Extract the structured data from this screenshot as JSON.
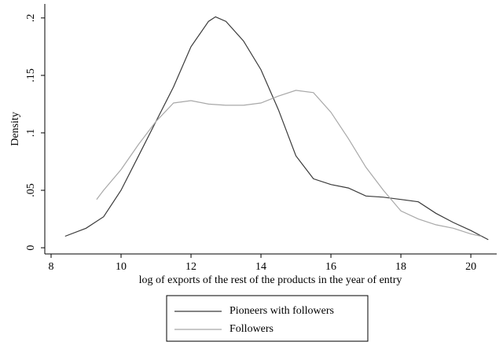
{
  "chart_data": {
    "type": "line",
    "xlabel": "log of exports of the rest of the products in the year of entry",
    "ylabel": "Density",
    "xlim": [
      7.82,
      20.74
    ],
    "ylim": [
      -0.0054,
      0.2122
    ],
    "xticks": [
      8,
      10,
      12,
      14,
      16,
      18,
      20
    ],
    "yticks": [
      0,
      {
        "value": 0.05,
        "label": ".05"
      },
      {
        "value": 0.1,
        "label": ".1"
      },
      {
        "value": 0.15,
        "label": ".15"
      },
      {
        "value": 0.2,
        "label": ".2"
      }
    ],
    "series": [
      {
        "name": "Pioneers with followers",
        "color": "#3a3a3a",
        "x": [
          8.4,
          9,
          9.5,
          10,
          10.5,
          11,
          11.5,
          12,
          12.5,
          12.7,
          13,
          13.5,
          14,
          14.5,
          15,
          15.5,
          16,
          16.5,
          17,
          17.5,
          18,
          18.5,
          19,
          19.5,
          20,
          20.5
        ],
        "values": [
          0.01,
          0.017,
          0.027,
          0.05,
          0.08,
          0.11,
          0.14,
          0.175,
          0.197,
          0.201,
          0.197,
          0.18,
          0.155,
          0.12,
          0.08,
          0.06,
          0.055,
          0.052,
          0.045,
          0.044,
          0.042,
          0.04,
          0.03,
          0.022,
          0.015,
          0.007
        ]
      },
      {
        "name": "Followers",
        "color": "#a8a8a8",
        "x": [
          9.3,
          9.5,
          10,
          10.5,
          11,
          11.5,
          12,
          12.5,
          13,
          13.5,
          14,
          14.5,
          15,
          15.5,
          16,
          16.5,
          17,
          17.5,
          18,
          18.5,
          19,
          19.5,
          20,
          20.3
        ],
        "values": [
          0.042,
          0.05,
          0.068,
          0.09,
          0.11,
          0.126,
          0.128,
          0.125,
          0.124,
          0.124,
          0.126,
          0.132,
          0.137,
          0.135,
          0.118,
          0.095,
          0.07,
          0.05,
          0.032,
          0.025,
          0.02,
          0.017,
          0.012,
          0.01
        ]
      }
    ]
  }
}
